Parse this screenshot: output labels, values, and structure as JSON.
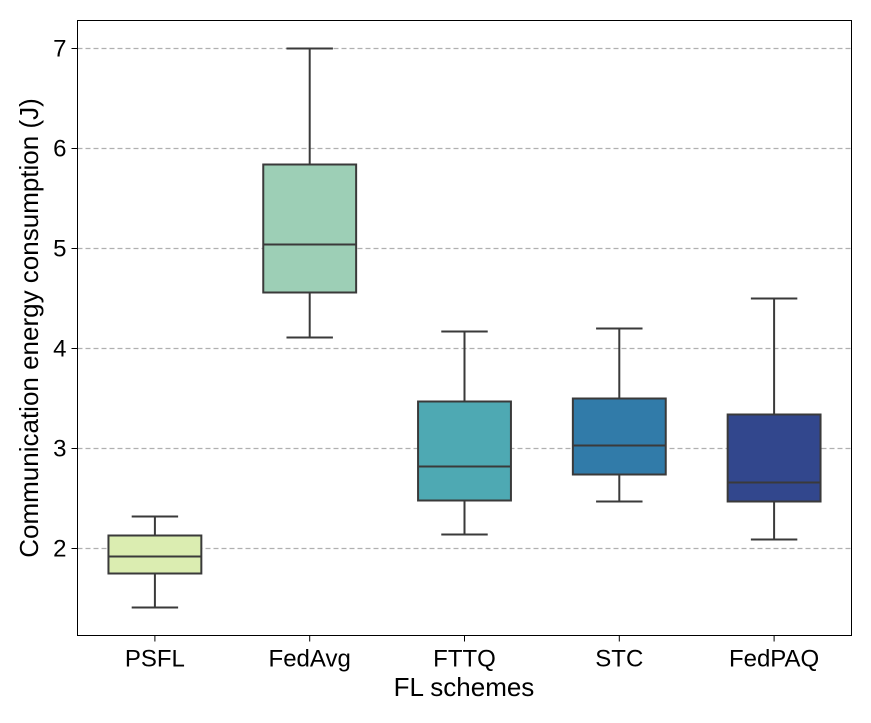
{
  "chart_data": {
    "type": "box",
    "title": "",
    "xlabel": "FL schemes",
    "ylabel": "Communication energy consumption (J)",
    "ylim": [
      1.13,
      7.28
    ],
    "yticks": [
      2,
      3,
      4,
      5,
      6,
      7
    ],
    "grid": "horizontal dashed",
    "categories": [
      "PSFL",
      "FedAvg",
      "FTTQ",
      "STC",
      "FedPAQ"
    ],
    "boxes": [
      {
        "name": "PSFL",
        "min": 1.41,
        "q1": 1.75,
        "median": 1.92,
        "q3": 2.13,
        "max": 2.32,
        "color": "#dbedb1"
      },
      {
        "name": "FedAvg",
        "min": 4.11,
        "q1": 4.56,
        "median": 5.04,
        "q3": 5.84,
        "max": 7.0,
        "color": "#9dcfb6"
      },
      {
        "name": "FTTQ",
        "min": 2.14,
        "q1": 2.48,
        "median": 2.82,
        "q3": 3.47,
        "max": 4.17,
        "color": "#4ea9b3"
      },
      {
        "name": "STC",
        "min": 2.47,
        "q1": 2.74,
        "median": 3.03,
        "q3": 3.5,
        "max": 4.2,
        "color": "#317ba9"
      },
      {
        "name": "FedPAQ",
        "min": 2.09,
        "q1": 2.47,
        "median": 2.66,
        "q3": 3.34,
        "max": 4.5,
        "color": "#32478d"
      }
    ]
  }
}
